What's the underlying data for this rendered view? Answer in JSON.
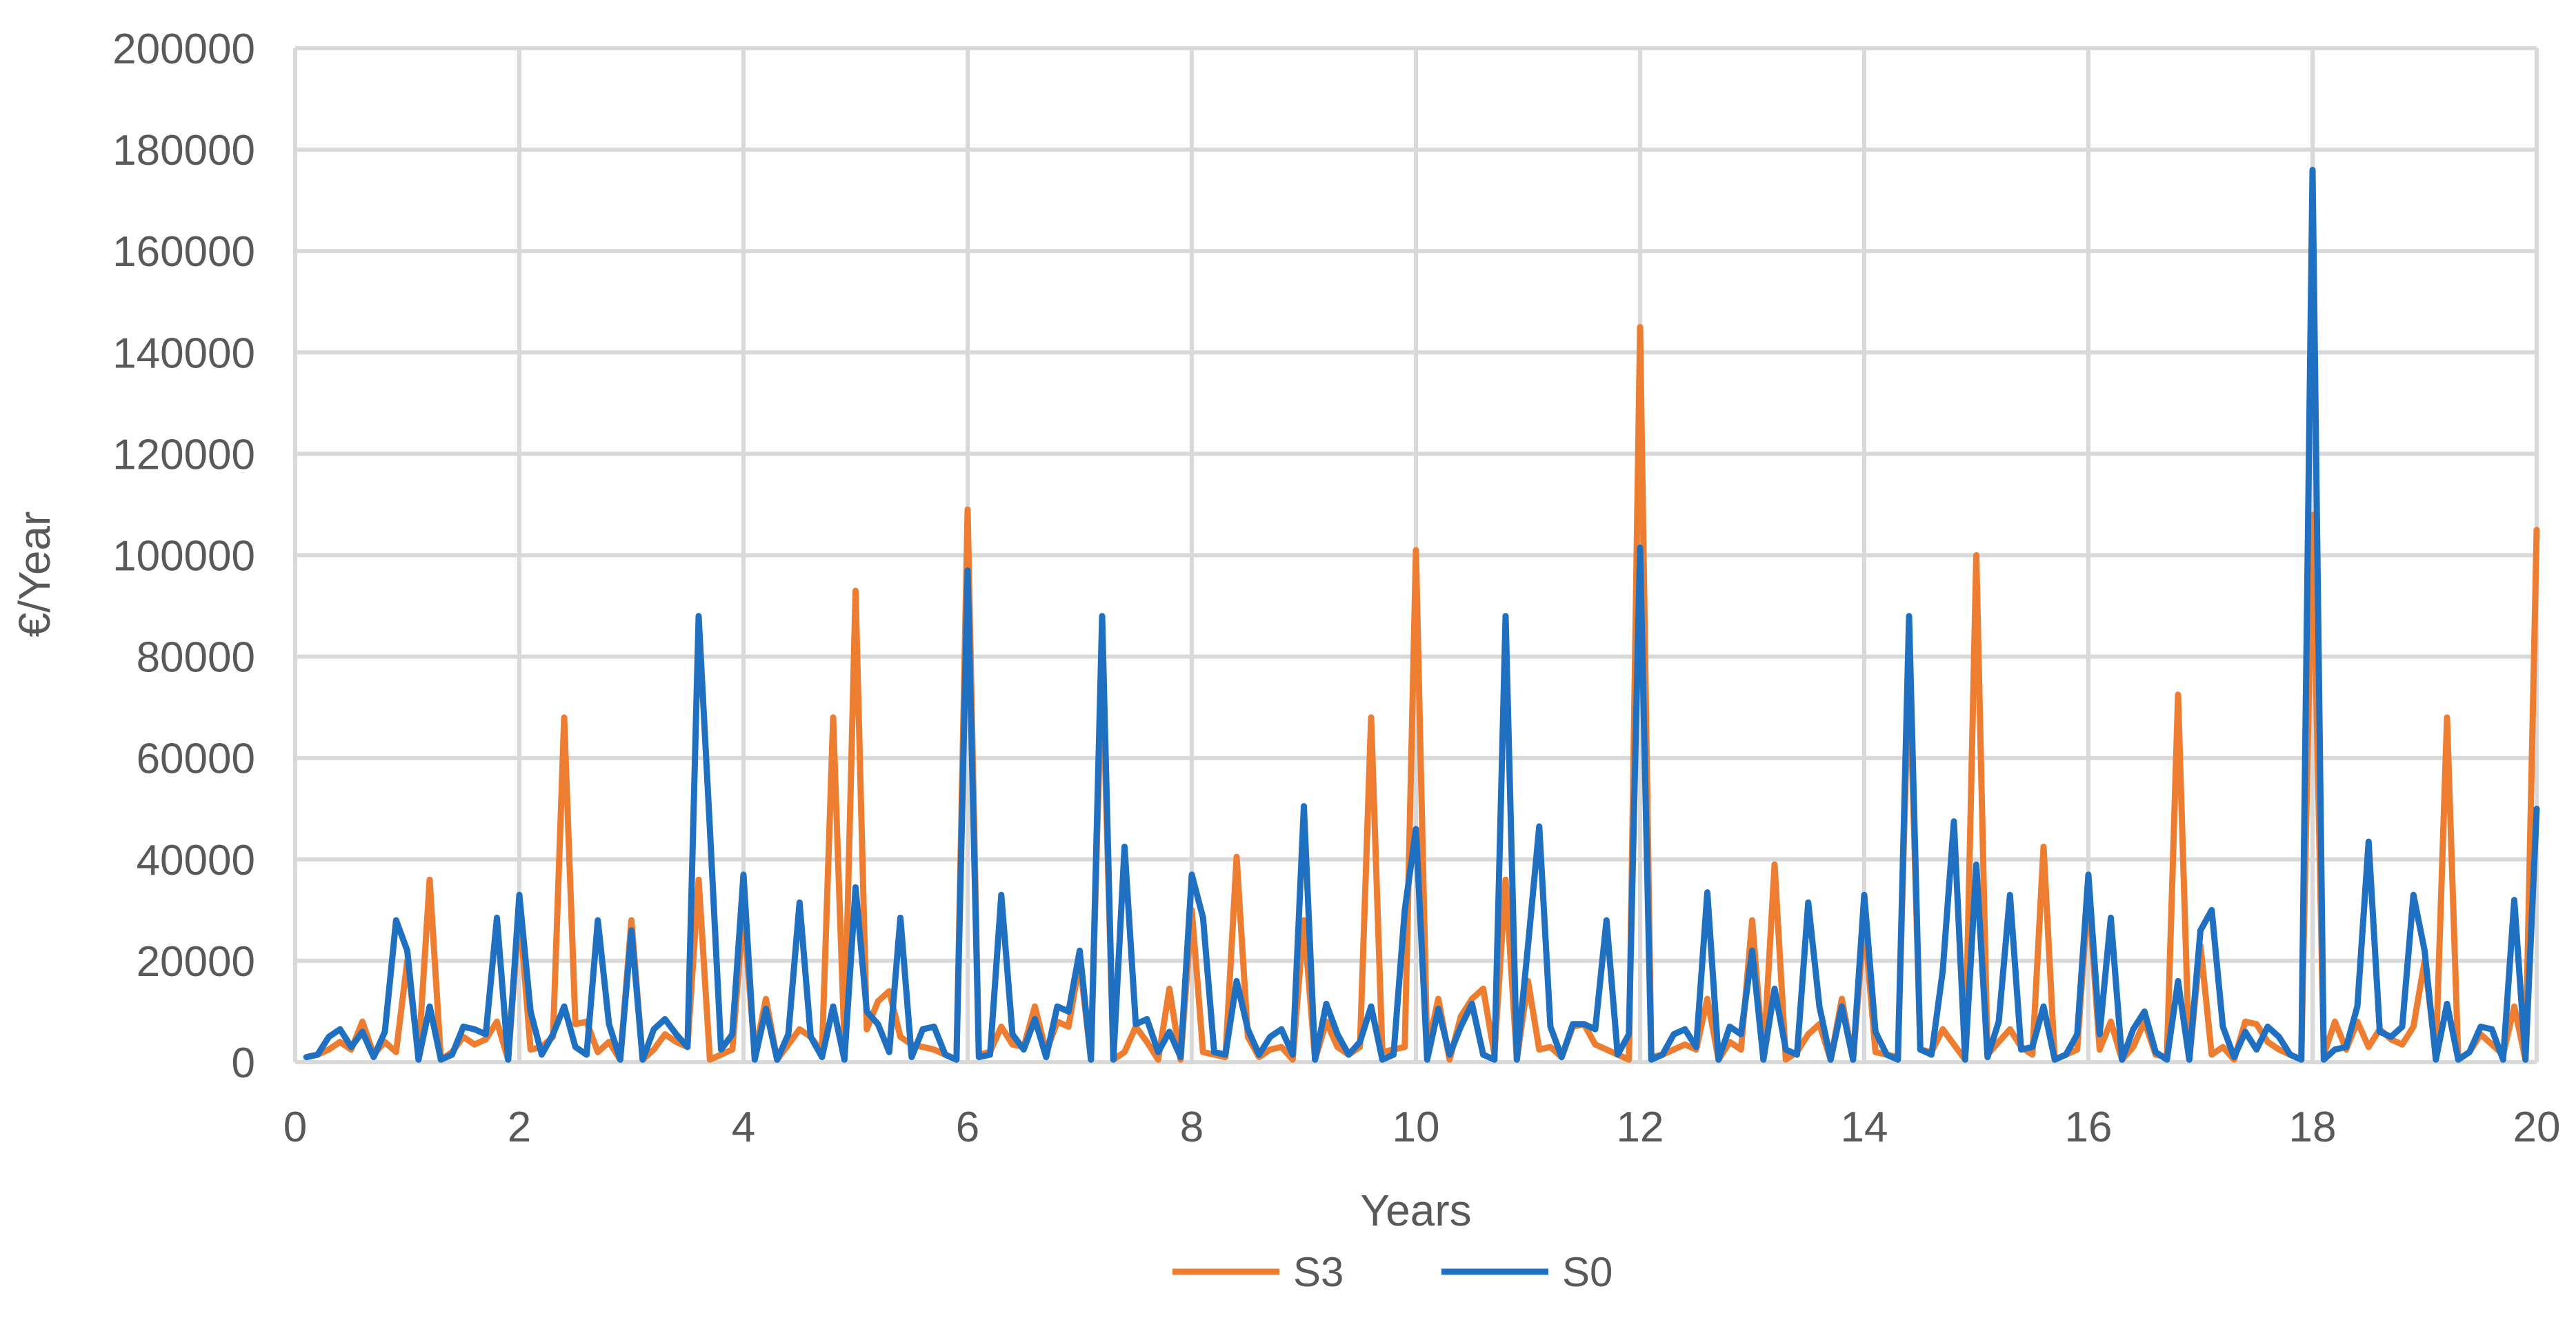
{
  "chart_data": {
    "type": "line",
    "title": "",
    "xlabel": "Years",
    "ylabel": "€/Year",
    "xlim": [
      0,
      20
    ],
    "ylim": [
      0,
      200000
    ],
    "x_ticks": [
      0,
      2,
      4,
      6,
      8,
      10,
      12,
      14,
      16,
      18,
      20
    ],
    "y_ticks": [
      0,
      20000,
      40000,
      60000,
      80000,
      100000,
      120000,
      140000,
      160000,
      180000,
      200000
    ],
    "grid": true,
    "legend_position": "bottom",
    "x": [
      0.1,
      0.2,
      0.3,
      0.4,
      0.5,
      0.6,
      0.7,
      0.8,
      0.9,
      1.0,
      1.1,
      1.2,
      1.3,
      1.4,
      1.5,
      1.6,
      1.7,
      1.8,
      1.9,
      2.0,
      2.1,
      2.2,
      2.3,
      2.4,
      2.5,
      2.6,
      2.7,
      2.8,
      2.9,
      3.0,
      3.1,
      3.2,
      3.3,
      3.4,
      3.5,
      3.6,
      3.7,
      3.8,
      3.9,
      4.0,
      4.1,
      4.2,
      4.3,
      4.4,
      4.5,
      4.6,
      4.7,
      4.8,
      4.9,
      5.0,
      5.1,
      5.2,
      5.3,
      5.4,
      5.5,
      5.6,
      5.7,
      5.8,
      5.9,
      6.0,
      6.1,
      6.2,
      6.3,
      6.4,
      6.5,
      6.6,
      6.7,
      6.8,
      6.9,
      7.0,
      7.1,
      7.2,
      7.3,
      7.4,
      7.5,
      7.6,
      7.7,
      7.8,
      7.9,
      8.0,
      8.1,
      8.2,
      8.3,
      8.4,
      8.5,
      8.6,
      8.7,
      8.8,
      8.9,
      9.0,
      9.1,
      9.2,
      9.3,
      9.4,
      9.5,
      9.6,
      9.7,
      9.8,
      9.9,
      10.0,
      10.1,
      10.2,
      10.3,
      10.4,
      10.5,
      10.6,
      10.7,
      10.8,
      10.9,
      11.0,
      11.1,
      11.2,
      11.3,
      11.4,
      11.5,
      11.6,
      11.7,
      11.8,
      11.9,
      12.0,
      12.1,
      12.2,
      12.3,
      12.4,
      12.5,
      12.6,
      12.7,
      12.8,
      12.9,
      13.0,
      13.1,
      13.2,
      13.3,
      13.4,
      13.5,
      13.6,
      13.7,
      13.8,
      13.9,
      14.0,
      14.1,
      14.2,
      14.3,
      14.4,
      14.5,
      14.6,
      14.7,
      14.8,
      14.9,
      15.0,
      15.1,
      15.2,
      15.3,
      15.4,
      15.5,
      15.6,
      15.7,
      15.8,
      15.9,
      16.0,
      16.1,
      16.2,
      16.3,
      16.4,
      16.5,
      16.6,
      16.7,
      16.8,
      16.9,
      17.0,
      17.1,
      17.2,
      17.3,
      17.4,
      17.5,
      17.6,
      17.7,
      17.8,
      17.9,
      18.0,
      18.1,
      18.2,
      18.3,
      18.4,
      18.5,
      18.6,
      18.7,
      18.8,
      18.9,
      19.0,
      19.1,
      19.2,
      19.3,
      19.4,
      19.5,
      19.6,
      19.7,
      19.8,
      19.9,
      20.0
    ],
    "series": [
      {
        "name": "S3",
        "color": "#ED7D31",
        "values": [
          1000,
          1500,
          2500,
          4000,
          2500,
          8000,
          1500,
          4000,
          2000,
          20000,
          1500,
          36000,
          500,
          2000,
          5000,
          3500,
          4500,
          8000,
          500,
          30000,
          2500,
          3000,
          5000,
          68000,
          7500,
          8000,
          2000,
          4000,
          500,
          28000,
          500,
          2500,
          5500,
          4000,
          3000,
          36000,
          500,
          1500,
          2500,
          30000,
          1500,
          12500,
          500,
          3500,
          6500,
          5000,
          2000,
          68000,
          4000,
          93000,
          6500,
          12000,
          14000,
          5000,
          3500,
          3000,
          2500,
          1500,
          500,
          109000,
          1500,
          2000,
          7000,
          3500,
          3000,
          11000,
          2000,
          8000,
          7000,
          20000,
          500,
          80000,
          500,
          2000,
          7000,
          4000,
          500,
          14500,
          500,
          30000,
          2000,
          1500,
          1000,
          40500,
          5000,
          1000,
          2500,
          3000,
          500,
          28000,
          500,
          8000,
          3000,
          1500,
          3000,
          68000,
          2000,
          2500,
          3000,
          101000,
          2500,
          12500,
          500,
          9000,
          12500,
          14500,
          1500,
          36000,
          500,
          16000,
          2500,
          3000,
          1000,
          7000,
          7500,
          3500,
          2500,
          1500,
          500,
          145000,
          1000,
          1500,
          2500,
          3500,
          2500,
          12500,
          500,
          4000,
          2500,
          28000,
          500,
          39000,
          500,
          2000,
          5500,
          7500,
          500,
          12500,
          500,
          28000,
          2000,
          1500,
          1000,
          80000,
          2500,
          2000,
          6500,
          3500,
          500,
          100000,
          1500,
          4000,
          6500,
          3000,
          1500,
          42500,
          500,
          1500,
          2500,
          34000,
          2500,
          8000,
          500,
          3000,
          8000,
          1500,
          1000,
          72500,
          500,
          23000,
          1500,
          3000,
          500,
          8000,
          7500,
          4000,
          2500,
          1500,
          500,
          108000,
          1500,
          8000,
          2500,
          8000,
          3000,
          6500,
          4500,
          3500,
          7000,
          20000,
          1500,
          68000,
          500,
          2000,
          5500,
          3500,
          1500,
          11000,
          500,
          105000
        ]
      },
      {
        "name": "S0",
        "color": "#1F70C1",
        "values": [
          1000,
          1500,
          5000,
          6500,
          3000,
          6000,
          1000,
          6000,
          28000,
          22000,
          500,
          11000,
          500,
          1500,
          7000,
          6500,
          5500,
          28500,
          500,
          33000,
          10000,
          1500,
          5500,
          11000,
          3000,
          1500,
          28000,
          7500,
          500,
          26000,
          500,
          6500,
          8500,
          5500,
          3000,
          88000,
          46000,
          2500,
          5500,
          37000,
          500,
          10500,
          500,
          5500,
          31500,
          5000,
          1000,
          11000,
          500,
          34500,
          10000,
          7500,
          2000,
          28500,
          1000,
          6500,
          7000,
          1500,
          500,
          97000,
          1000,
          1500,
          33000,
          5500,
          2500,
          8500,
          1000,
          11000,
          10000,
          22000,
          500,
          88000,
          500,
          42500,
          7500,
          8500,
          2000,
          6000,
          1000,
          37000,
          28500,
          2000,
          1500,
          16000,
          6500,
          1500,
          5000,
          6500,
          1500,
          50500,
          500,
          11500,
          5500,
          1500,
          4000,
          11000,
          500,
          1500,
          30000,
          46000,
          500,
          10500,
          1500,
          7000,
          11500,
          1500,
          500,
          88000,
          500,
          23000,
          46500,
          7000,
          1000,
          7500,
          7500,
          6500,
          28000,
          1500,
          5500,
          101500,
          500,
          1500,
          5500,
          6500,
          3000,
          33500,
          500,
          7000,
          5500,
          22000,
          500,
          14500,
          2500,
          1500,
          31500,
          11000,
          500,
          11000,
          500,
          33000,
          6000,
          1500,
          500,
          88000,
          2500,
          1500,
          18000,
          47500,
          500,
          39000,
          1000,
          8000,
          33000,
          2500,
          3000,
          11000,
          500,
          1500,
          5500,
          37000,
          5500,
          28500,
          500,
          6500,
          10000,
          2000,
          500,
          16000,
          500,
          26000,
          30000,
          7000,
          1000,
          6000,
          2500,
          7000,
          5000,
          1500,
          500,
          176000,
          500,
          2500,
          3000,
          11000,
          43500,
          6000,
          5000,
          7000,
          33000,
          22000,
          500,
          11500,
          500,
          2000,
          7000,
          6500,
          500,
          32000,
          500,
          50000
        ]
      }
    ]
  }
}
